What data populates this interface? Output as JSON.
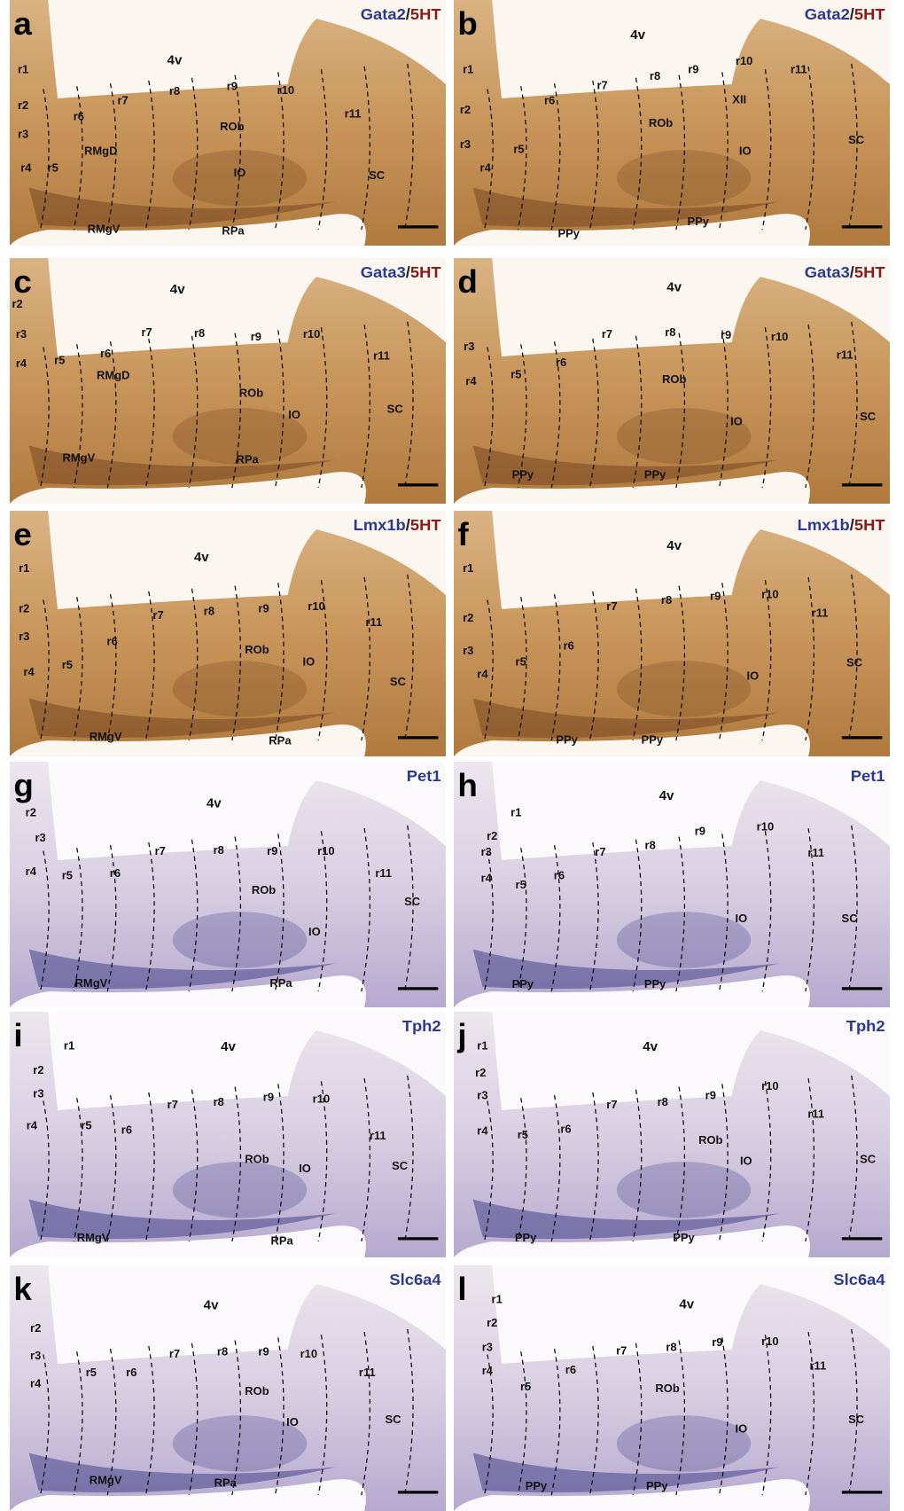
{
  "panels": [
    {
      "letter": "a",
      "marker": {
        "gene": "Gata2",
        "separator": "/",
        "counterstain": "5HT"
      },
      "labels": [
        "4v",
        "r1",
        "r2",
        "r3",
        "r4",
        "r5",
        "r6",
        "r7",
        "r8",
        "r9",
        "r10",
        "r11",
        "RMgD",
        "ROb",
        "IO",
        "SC",
        "RMgV",
        "RPa"
      ]
    },
    {
      "letter": "b",
      "marker": {
        "gene": "Gata2",
        "separator": "/",
        "counterstain": "5HT"
      },
      "labels": [
        "4v",
        "r1",
        "r2",
        "r3",
        "r4",
        "r5",
        "r6",
        "r7",
        "r8",
        "r9",
        "r10",
        "r11",
        "XII",
        "ROb",
        "IO",
        "SC",
        "PPy",
        "PPy"
      ]
    },
    {
      "letter": "c",
      "marker": {
        "gene": "Gata3",
        "separator": "/",
        "counterstain": "5HT"
      },
      "labels": [
        "4v",
        "r2",
        "r3",
        "r4",
        "r5",
        "r6",
        "r7",
        "r8",
        "r9",
        "r10",
        "r11",
        "RMgD",
        "ROb",
        "IO",
        "SC",
        "RMgV",
        "RPa"
      ]
    },
    {
      "letter": "d",
      "marker": {
        "gene": "Gata3",
        "separator": "/",
        "counterstain": "5HT"
      },
      "labels": [
        "4v",
        "r3",
        "r4",
        "r5",
        "r6",
        "r7",
        "r8",
        "r9",
        "r10",
        "r11",
        "ROb",
        "IO",
        "SC",
        "PPy",
        "PPy"
      ]
    },
    {
      "letter": "e",
      "marker": {
        "gene": "Lmx1b",
        "separator": "/",
        "counterstain": "5HT"
      },
      "labels": [
        "4v",
        "r1",
        "r2",
        "r3",
        "r4",
        "r5",
        "r6",
        "r7",
        "r8",
        "r9",
        "r10",
        "r11",
        "ROb",
        "IO",
        "SC",
        "RMgV",
        "RPa"
      ]
    },
    {
      "letter": "f",
      "marker": {
        "gene": "Lmx1b",
        "separator": "/",
        "counterstain": "5HT"
      },
      "labels": [
        "4v",
        "r1",
        "r2",
        "r3",
        "r4",
        "r5",
        "r6",
        "r7",
        "r8",
        "r9",
        "r10",
        "r11",
        "IO",
        "SC",
        "PPy",
        "PPy"
      ]
    },
    {
      "letter": "g",
      "marker": {
        "gene": "Pet1"
      },
      "labels": [
        "4v",
        "r2",
        "r3",
        "r4",
        "r5",
        "r6",
        "r7",
        "r8",
        "r9",
        "r10",
        "r11",
        "ROb",
        "IO",
        "SC",
        "RMgV",
        "RPa"
      ]
    },
    {
      "letter": "h",
      "marker": {
        "gene": "Pet1"
      },
      "labels": [
        "4v",
        "r1",
        "r2",
        "r3",
        "r4",
        "r5",
        "r6",
        "r7",
        "r8",
        "r9",
        "r10",
        "r11",
        "IO",
        "SC",
        "PPy",
        "PPy"
      ]
    },
    {
      "letter": "i",
      "marker": {
        "gene": "Tph2"
      },
      "labels": [
        "4v",
        "r1",
        "r2",
        "r3",
        "r4",
        "r5",
        "r6",
        "r7",
        "r8",
        "r9",
        "r10",
        "r11",
        "ROb",
        "IO",
        "SC",
        "RMgV",
        "RPa"
      ]
    },
    {
      "letter": "j",
      "marker": {
        "gene": "Tph2"
      },
      "labels": [
        "4v",
        "r1",
        "r2",
        "r3",
        "r4",
        "r5",
        "r6",
        "r7",
        "r8",
        "r9",
        "r10",
        "r11",
        "ROb",
        "IO",
        "SC",
        "PPy",
        "PPy"
      ]
    },
    {
      "letter": "k",
      "marker": {
        "gene": "Slc6a4"
      },
      "labels": [
        "4v",
        "r2",
        "r3",
        "r4",
        "r5",
        "r6",
        "r7",
        "r8",
        "r9",
        "r10",
        "r11",
        "ROb",
        "IO",
        "SC",
        "RMgV",
        "RPa"
      ]
    },
    {
      "letter": "l",
      "marker": {
        "gene": "Slc6a4"
      },
      "labels": [
        "4v",
        "r1",
        "r2",
        "r3",
        "r4",
        "r5",
        "r6",
        "r7",
        "r8",
        "r9",
        "r10",
        "r11",
        "ROb",
        "IO",
        "SC",
        "PPy",
        "PPy"
      ]
    }
  ]
}
